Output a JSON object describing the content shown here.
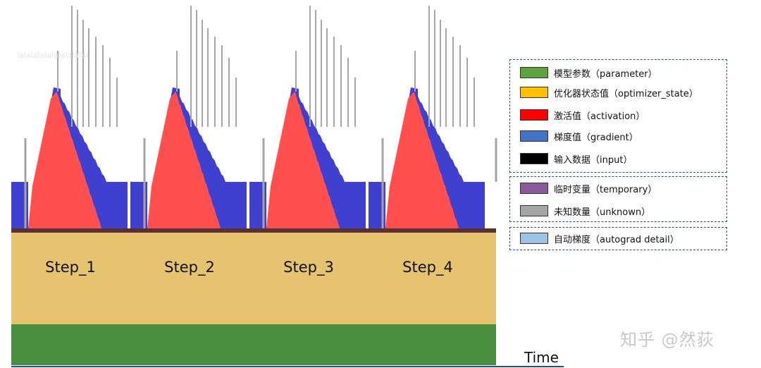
{
  "chart_data": {
    "type": "area",
    "xlabel": "Time",
    "steps": [
      "Step_1",
      "Step_2",
      "Step_3",
      "Step_4"
    ],
    "layers_baseline": [
      {
        "name": "模型参数（parameter）",
        "color": "#4a8f3f",
        "level": 1.0
      },
      {
        "name": "优化器状态值（optimizer_state）",
        "color": "#e6c36e",
        "level": 2.0
      }
    ],
    "activation_peak": 1.0,
    "gradient_level": 0.35,
    "grid": false,
    "legend_position": "right"
  },
  "legend": {
    "group1": [
      {
        "label": "模型参数（parameter）",
        "color": "#5da33e",
        "icon": "parameter-swatch"
      },
      {
        "label": "优化器状态值（optimizer_state）",
        "color": "#ffc000",
        "icon": "optimizer-swatch"
      },
      {
        "label": "激活值（activation）",
        "color": "#ff0000",
        "icon": "activation-swatch"
      },
      {
        "label": "梯度值（gradient）",
        "color": "#4472c4",
        "icon": "gradient-swatch"
      },
      {
        "label": "输入数据（input）",
        "color": "#000000",
        "icon": "input-swatch"
      }
    ],
    "group2": [
      {
        "label": "临时变量（temporary）",
        "color": "#8b5a9b",
        "icon": "temporary-swatch"
      },
      {
        "label": "未知数量（unknown）",
        "color": "#a5a5a5",
        "icon": "unknown-swatch"
      }
    ],
    "group3": [
      {
        "label": "自动梯度（autograd detail）",
        "color": "#9dc3e6",
        "icon": "autograd-swatch"
      }
    ]
  },
  "watermark": "知乎 @然荻",
  "faint_text": "lalalalalalalalalalal",
  "colors": {
    "parameter": "#4a8f3f",
    "optimizer": "#e6c36e",
    "activation": "#ff4f4f",
    "gradient": "#3f3fd0",
    "unknown": "#a5a5a5",
    "input": "#5a3030"
  }
}
